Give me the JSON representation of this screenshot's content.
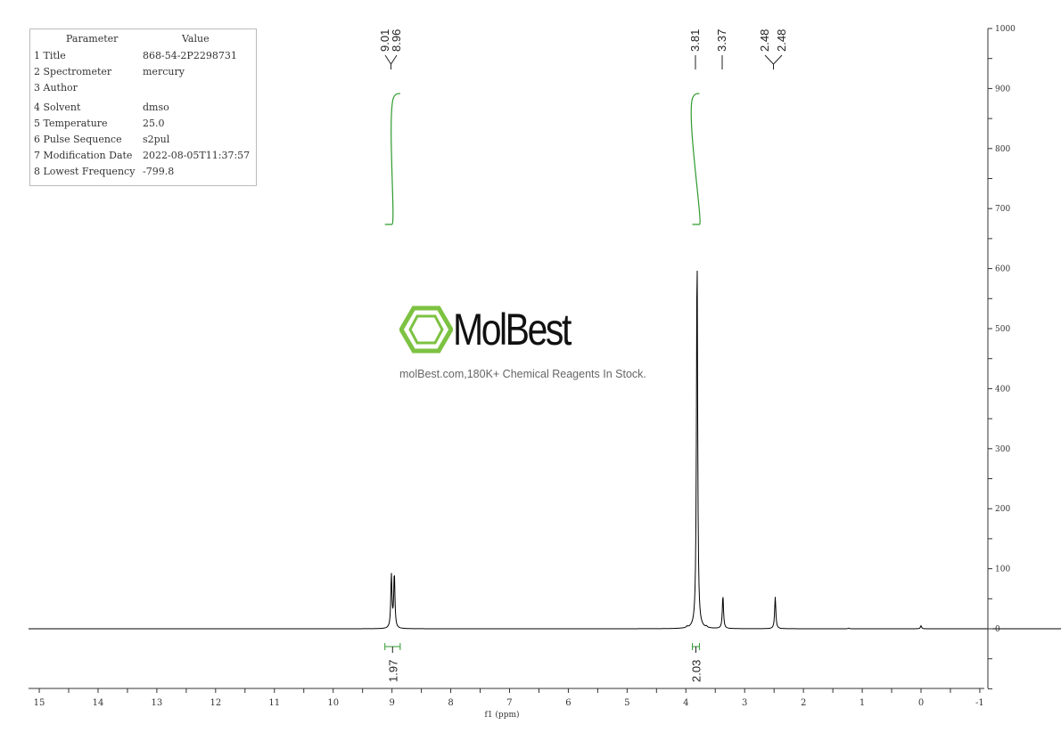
{
  "parameters": {
    "header": [
      "Parameter",
      "Value"
    ],
    "rows": [
      [
        "1 Title",
        "868-54-2P2298731"
      ],
      [
        "2 Spectrometer",
        "mercury"
      ],
      [
        "3 Author",
        ""
      ],
      [
        "4 Solvent",
        "dmso"
      ],
      [
        "5 Temperature",
        "25.0"
      ],
      [
        "6 Pulse Sequence",
        "s2pul"
      ],
      [
        "7 Modification Date",
        "2022-08-05T11:37:57"
      ],
      [
        "8 Lowest Frequency",
        "-799.8"
      ]
    ]
  },
  "watermark": {
    "brand": "MolBest",
    "tagline": "molBest.com,180K+ Chemical Reagents In Stock.",
    "color": "#7dc242"
  },
  "chart_data": {
    "type": "line",
    "xlabel": "f1 (ppm)",
    "xlim": [
      15.2,
      -1
    ],
    "x_reversed": true,
    "xticks": [
      15,
      14,
      13,
      12,
      11,
      10,
      9,
      8,
      7,
      6,
      5,
      4,
      3,
      2,
      1,
      0,
      -1
    ],
    "ylim": [
      -100,
      1000
    ],
    "yticks": [
      0,
      100,
      200,
      300,
      400,
      500,
      600,
      700,
      800,
      900,
      1000
    ],
    "y_axis_side": "right",
    "grid": false,
    "peaks": [
      {
        "ppm": 9.01,
        "height": 88
      },
      {
        "ppm": 8.96,
        "height": 91
      },
      {
        "ppm": 3.98,
        "height": 2
      },
      {
        "ppm": 3.81,
        "height": 632
      },
      {
        "ppm": 3.65,
        "height": 2
      },
      {
        "ppm": 3.37,
        "height": 55
      },
      {
        "ppm": 2.48,
        "height": 53
      },
      {
        "ppm": 1.23,
        "height": 1
      },
      {
        "ppm": 0.0,
        "height": 5
      }
    ],
    "peak_labels": [
      "9.01",
      "8.96",
      "3.81",
      "3.37",
      "2.48",
      "2.48"
    ],
    "peak_label_positions": [
      9.01,
      8.96,
      3.81,
      3.37,
      2.48,
      2.48
    ],
    "integrals": [
      {
        "from": 9.12,
        "to": 8.86,
        "value": "1.97"
      },
      {
        "from": 3.89,
        "to": 3.77,
        "value": "2.03"
      }
    ],
    "spectrum_color": "#000000",
    "integral_color": "#2e9a2e"
  }
}
